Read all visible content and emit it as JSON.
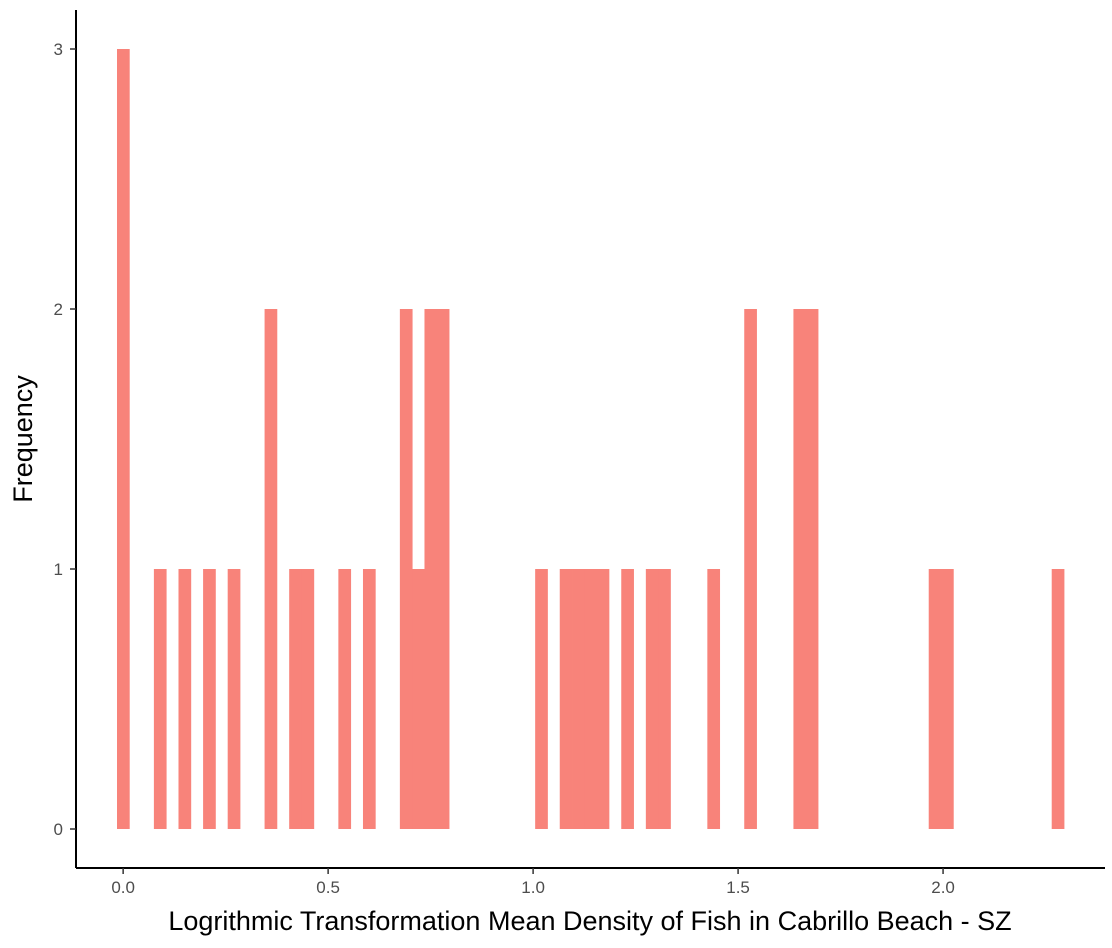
{
  "chart_data": {
    "type": "bar",
    "xlabel": "Logrithmic Transformation Mean Density of Fish in Cabrillo Beach - SZ",
    "ylabel": "Frequency",
    "bar_color": "#F8837A",
    "bin_width": 0.03,
    "xlim": [
      -0.115,
      2.395
    ],
    "ylim": [
      -0.15,
      3.15
    ],
    "x_ticks": [
      {
        "value": 0.0,
        "label": "0.0"
      },
      {
        "value": 0.5,
        "label": "0.5"
      },
      {
        "value": 1.0,
        "label": "1.0"
      },
      {
        "value": 1.5,
        "label": "1.5"
      },
      {
        "value": 2.0,
        "label": "2.0"
      }
    ],
    "y_ticks": [
      {
        "value": 0,
        "label": "0"
      },
      {
        "value": 1,
        "label": "1"
      },
      {
        "value": 2,
        "label": "2"
      },
      {
        "value": 3,
        "label": "3"
      }
    ],
    "grid": false,
    "bins": [
      {
        "x": 0.0,
        "count": 3
      },
      {
        "x": 0.09,
        "count": 1
      },
      {
        "x": 0.15,
        "count": 1
      },
      {
        "x": 0.21,
        "count": 1
      },
      {
        "x": 0.27,
        "count": 1
      },
      {
        "x": 0.36,
        "count": 2
      },
      {
        "x": 0.42,
        "count": 1
      },
      {
        "x": 0.45,
        "count": 1
      },
      {
        "x": 0.54,
        "count": 1
      },
      {
        "x": 0.6,
        "count": 1
      },
      {
        "x": 0.69,
        "count": 2
      },
      {
        "x": 0.72,
        "count": 1
      },
      {
        "x": 0.75,
        "count": 2
      },
      {
        "x": 0.78,
        "count": 2
      },
      {
        "x": 1.02,
        "count": 1
      },
      {
        "x": 1.08,
        "count": 1
      },
      {
        "x": 1.11,
        "count": 1
      },
      {
        "x": 1.14,
        "count": 1
      },
      {
        "x": 1.17,
        "count": 1
      },
      {
        "x": 1.23,
        "count": 1
      },
      {
        "x": 1.29,
        "count": 1
      },
      {
        "x": 1.32,
        "count": 1
      },
      {
        "x": 1.44,
        "count": 1
      },
      {
        "x": 1.53,
        "count": 2
      },
      {
        "x": 1.65,
        "count": 2
      },
      {
        "x": 1.68,
        "count": 2
      },
      {
        "x": 1.98,
        "count": 1
      },
      {
        "x": 2.01,
        "count": 1
      },
      {
        "x": 2.28,
        "count": 1
      }
    ]
  }
}
